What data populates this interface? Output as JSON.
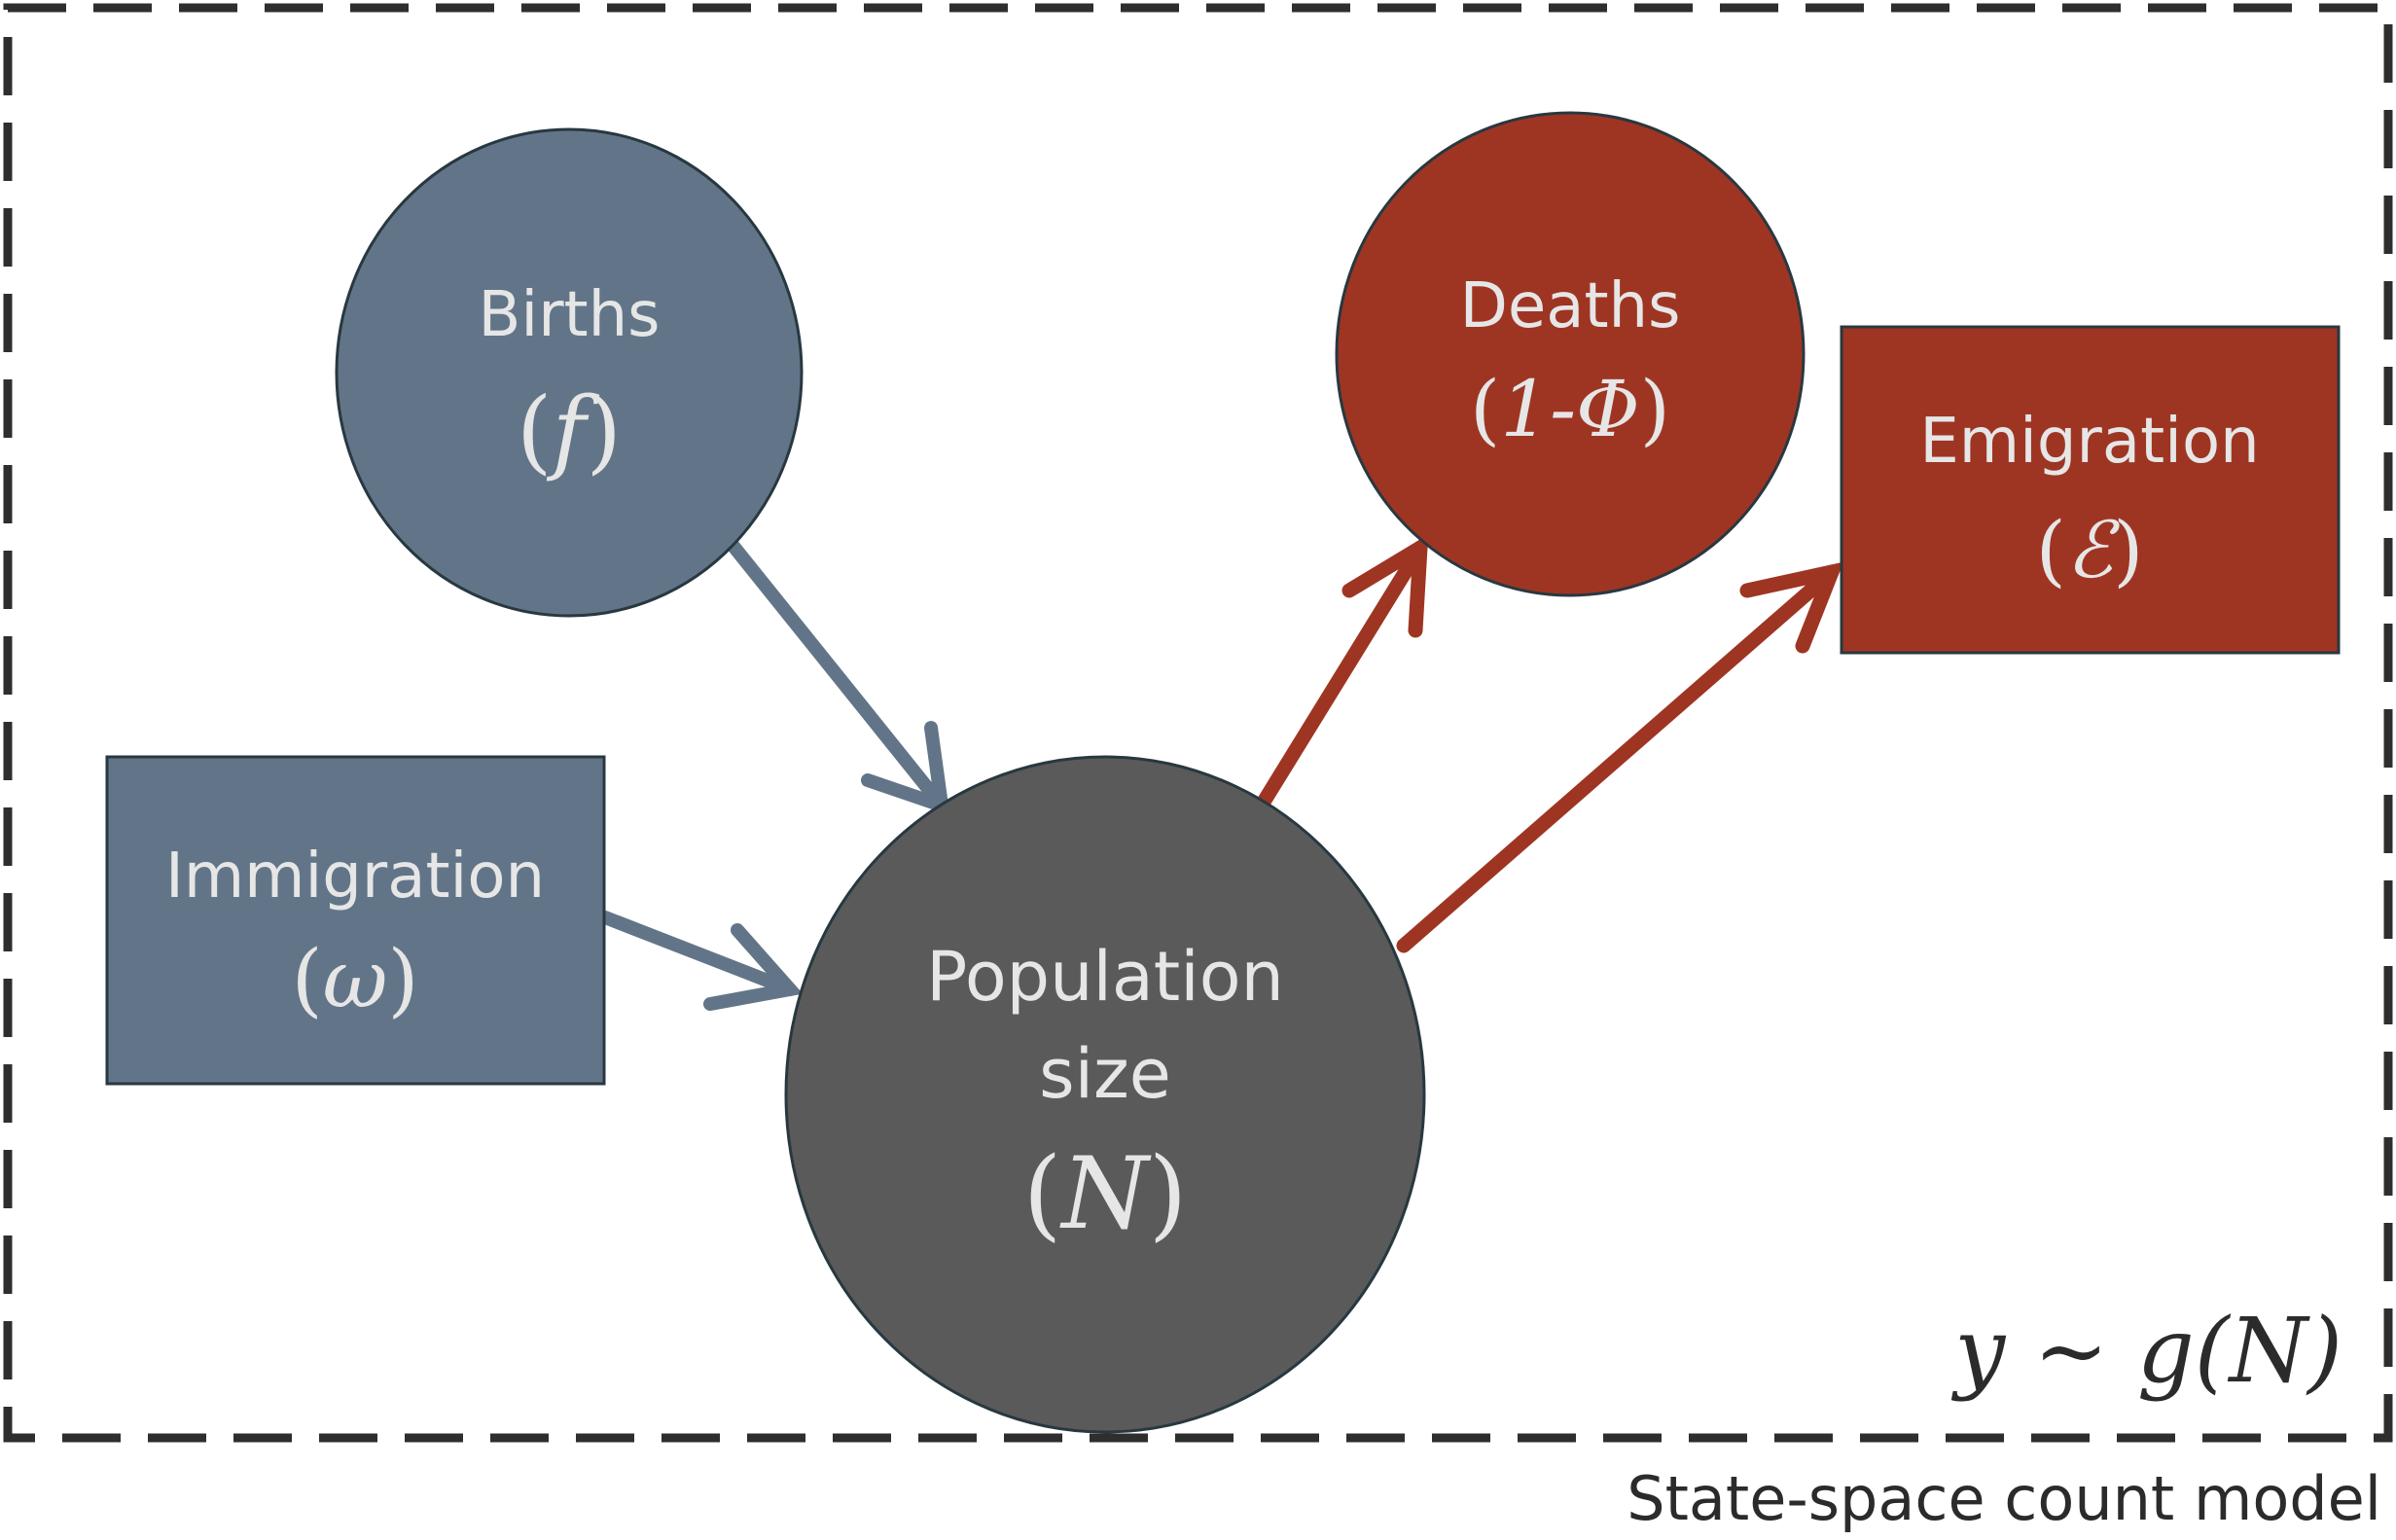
{
  "nodes": {
    "births": {
      "label": "Births",
      "symbol": "f"
    },
    "immigration": {
      "label": "Immigration",
      "symbol": "ω"
    },
    "population": {
      "label_line1": "Population",
      "label_line2": "size",
      "symbol": "N"
    },
    "deaths": {
      "label": "Deaths",
      "symbol": "1-Φ"
    },
    "emigration": {
      "label": "Emigration",
      "symbol": "ℰ"
    }
  },
  "parens": {
    "open": "(",
    "close": ")"
  },
  "observation": "y ~ g(N)",
  "caption": "State-space count model",
  "colors": {
    "inflow": "#627588",
    "outflow": "#9e3523",
    "population": "#5a5a5a",
    "border": "#2e2e2e",
    "label_text": "#e6e6e6"
  }
}
